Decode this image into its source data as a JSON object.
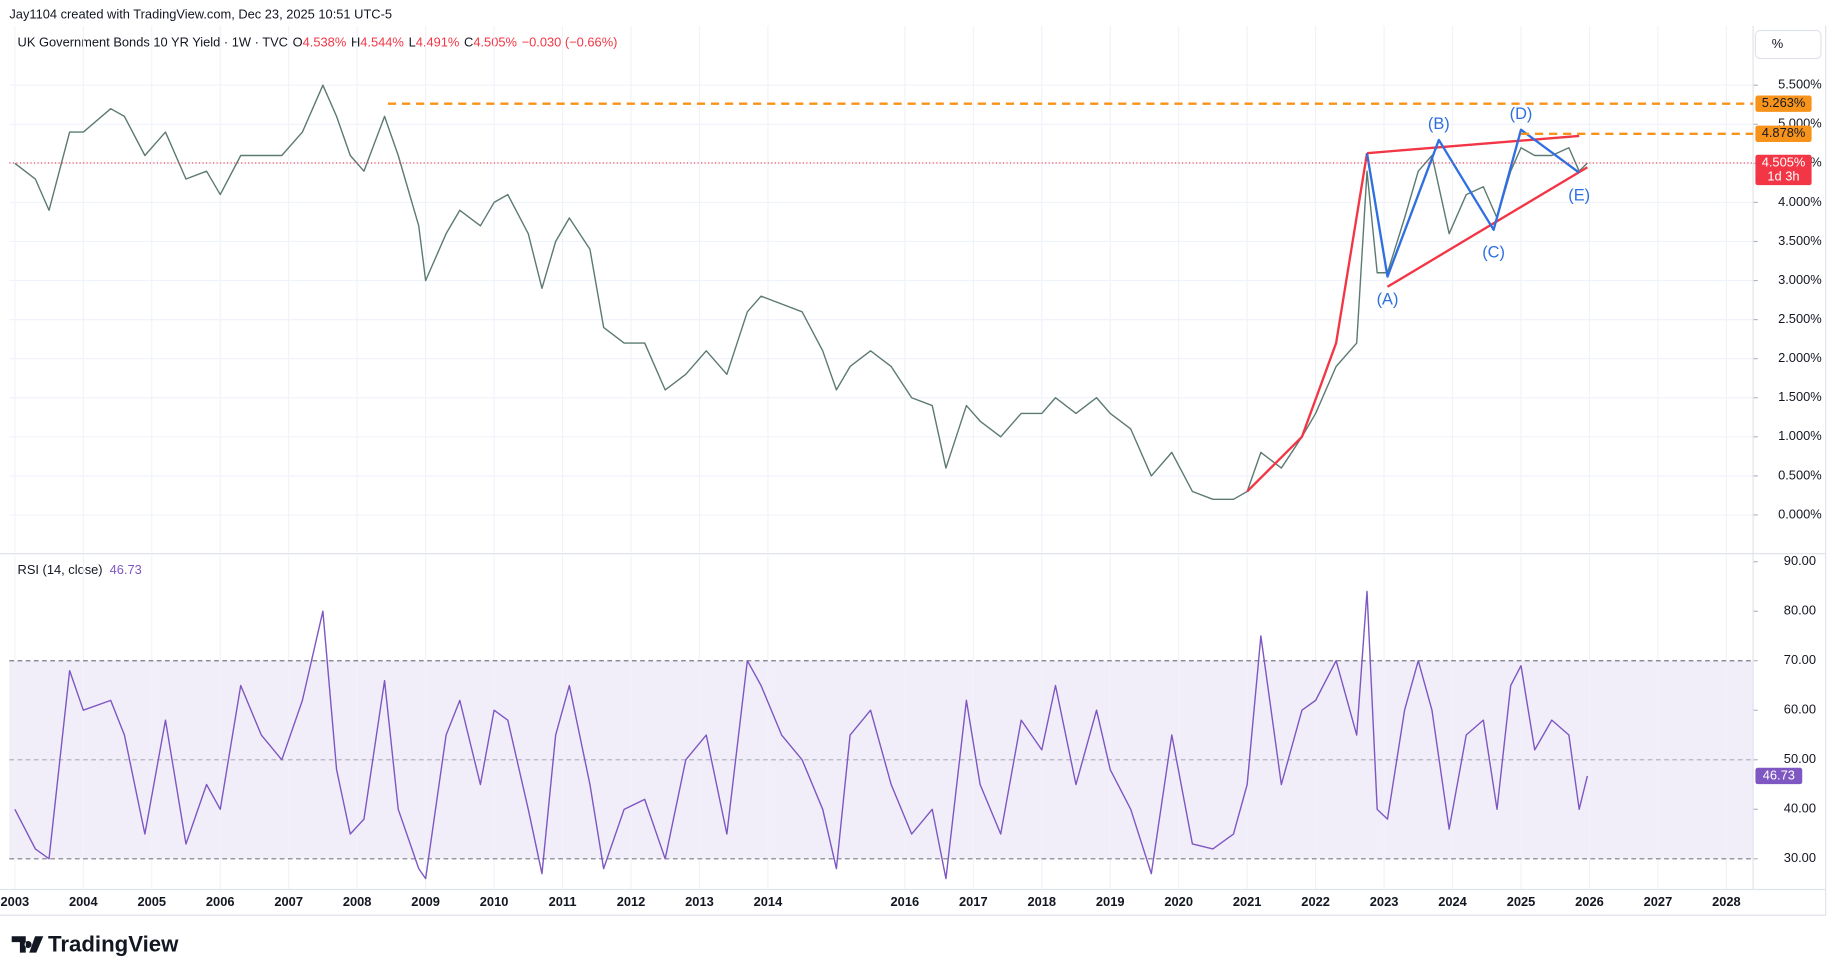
{
  "watermark": "Jay1104 created with TradingView.com, Dec 23, 2025 10:51 UTC-5",
  "logo": "TradingView",
  "unit_button": "%",
  "chart_data": [
    {
      "type": "line",
      "title": "UK Government Bonds 10 YR Yield · 1W · TVC",
      "ohlc": [
        {
          "key": "O",
          "text": "4.538%"
        },
        {
          "key": "H",
          "text": "4.544%"
        },
        {
          "key": "L",
          "text": "4.491%"
        },
        {
          "key": "C",
          "text": "4.505%"
        }
      ],
      "change": "−0.030 (−0.66%)",
      "xlim": [
        2002.92,
        2028.39
      ],
      "xticks": [
        2003,
        2004,
        2005,
        2006,
        2007,
        2008,
        2009,
        2010,
        2011,
        2012,
        2013,
        2014,
        2016,
        2017,
        2018,
        2019,
        2020,
        2021,
        2022,
        2023,
        2024,
        2025,
        2026,
        2027,
        2028
      ],
      "ylim": [
        -0.48,
        6.26
      ],
      "yticks": [
        {
          "value": 0,
          "label": "0.000%"
        },
        {
          "value": 0.5,
          "label": "0.500%"
        },
        {
          "value": 1,
          "label": "1.000%"
        },
        {
          "value": 1.5,
          "label": "1.500%"
        },
        {
          "value": 2,
          "label": "2.000%"
        },
        {
          "value": 2.5,
          "label": "2.500%"
        },
        {
          "value": 3,
          "label": "3.000%"
        },
        {
          "value": 3.5,
          "label": "3.500%"
        },
        {
          "value": 4,
          "label": "4.000%"
        },
        {
          "value": 4.5,
          "label": "4.500%"
        },
        {
          "value": 5,
          "label": "5.000%"
        },
        {
          "value": 5.5,
          "label": "5.500%"
        }
      ],
      "grid": true,
      "x": [
        2003.0,
        2003.3,
        2003.5,
        2003.8,
        2004.0,
        2004.4,
        2004.6,
        2004.9,
        2005.2,
        2005.5,
        2005.8,
        2006.0,
        2006.3,
        2006.6,
        2006.9,
        2007.2,
        2007.5,
        2007.7,
        2007.9,
        2008.1,
        2008.4,
        2008.6,
        2008.9,
        2009.0,
        2009.3,
        2009.5,
        2009.8,
        2010.0,
        2010.2,
        2010.5,
        2010.7,
        2010.9,
        2011.1,
        2011.4,
        2011.6,
        2011.9,
        2012.2,
        2012.5,
        2012.8,
        2013.1,
        2013.4,
        2013.7,
        2013.9,
        2014.2,
        2014.5,
        2014.8,
        2015.0,
        2015.2,
        2015.5,
        2015.8,
        2016.1,
        2016.4,
        2016.6,
        2016.9,
        2017.1,
        2017.4,
        2017.7,
        2018.0,
        2018.2,
        2018.5,
        2018.8,
        2019.0,
        2019.3,
        2019.6,
        2019.9,
        2020.2,
        2020.5,
        2020.8,
        2021.0,
        2021.2,
        2021.5,
        2021.8,
        2022.0,
        2022.3,
        2022.6,
        2022.75,
        2022.9,
        2023.05,
        2023.3,
        2023.5,
        2023.7,
        2023.95,
        2024.2,
        2024.45,
        2024.65,
        2024.85,
        2025.0,
        2025.2,
        2025.45,
        2025.7,
        2025.85,
        2025.97
      ],
      "series": [
        {
          "color": "#5d7a72",
          "values": [
            4.5,
            4.3,
            3.9,
            4.9,
            4.9,
            5.2,
            5.1,
            4.6,
            4.9,
            4.3,
            4.4,
            4.1,
            4.6,
            4.6,
            4.6,
            4.9,
            5.5,
            5.1,
            4.6,
            4.4,
            5.1,
            4.6,
            3.7,
            3.0,
            3.6,
            3.9,
            3.7,
            4.0,
            4.1,
            3.6,
            2.9,
            3.5,
            3.8,
            3.4,
            2.4,
            2.2,
            2.2,
            1.6,
            1.8,
            2.1,
            1.8,
            2.6,
            2.8,
            2.7,
            2.6,
            2.1,
            1.6,
            1.9,
            2.1,
            1.9,
            1.5,
            1.4,
            0.6,
            1.4,
            1.2,
            1.0,
            1.3,
            1.3,
            1.5,
            1.3,
            1.5,
            1.3,
            1.1,
            0.5,
            0.8,
            0.3,
            0.2,
            0.2,
            0.3,
            0.8,
            0.6,
            1.0,
            1.3,
            1.9,
            2.2,
            4.4,
            3.1,
            3.1,
            3.8,
            4.4,
            4.6,
            3.6,
            4.1,
            4.2,
            3.8,
            4.4,
            4.7,
            4.6,
            4.6,
            4.7,
            4.4,
            4.505
          ]
        }
      ],
      "levels": [
        {
          "value": 5.263,
          "label": "5.263%",
          "start": 2008.45,
          "color": "#f7931a",
          "text_color": "#131722",
          "style": "dashed"
        },
        {
          "value": 4.878,
          "label": "4.878%",
          "start": 2025.0,
          "color": "#f7931a",
          "text_color": "#131722",
          "style": "dashed"
        },
        {
          "value": 4.505,
          "label": "4.505%",
          "sub": "1d 3h",
          "start": 2002.92,
          "color": "#f23645",
          "text_color": "#ffffff",
          "style": "dotted"
        }
      ],
      "wave_path": {
        "color": "#2f6fe0",
        "x": [
          2022.75,
          2023.05,
          2023.8,
          2024.6,
          2025.0,
          2025.85
        ],
        "y": [
          4.63,
          3.05,
          4.8,
          3.65,
          4.93,
          4.38
        ],
        "labels": [
          null,
          "(A)",
          "(B)",
          "(C)",
          "(D)",
          "(E)"
        ]
      },
      "trendlines": [
        {
          "color": "#f23645",
          "x": [
            2022.75,
            2025.85
          ],
          "y": [
            4.63,
            4.85
          ]
        },
        {
          "color": "#f23645",
          "x": [
            2023.05,
            2025.97
          ],
          "y": [
            2.92,
            4.45
          ]
        }
      ],
      "curve": {
        "color": "#f23645",
        "x": [
          2021.0,
          2021.8,
          2022.3,
          2022.75
        ],
        "y": [
          0.3,
          1.0,
          2.2,
          4.63
        ]
      }
    },
    {
      "type": "line",
      "title": "RSI (14, close)",
      "last_value": 46.73,
      "color": "#7e57c2",
      "xlim": [
        2002.92,
        2028.39
      ],
      "ylim": [
        23.8,
        91.4
      ],
      "yticks": [
        {
          "value": 30,
          "label": "30.00"
        },
        {
          "value": 40,
          "label": "40.00"
        },
        {
          "value": 50,
          "label": "50.00"
        },
        {
          "value": 60,
          "label": "60.00"
        },
        {
          "value": 70,
          "label": "70.00"
        },
        {
          "value": 80,
          "label": "80.00"
        },
        {
          "value": 90,
          "label": "90.00"
        }
      ],
      "band": [
        30,
        70
      ],
      "midline": 50,
      "x": [
        2003.0,
        2003.3,
        2003.5,
        2003.8,
        2004.0,
        2004.4,
        2004.6,
        2004.9,
        2005.2,
        2005.5,
        2005.8,
        2006.0,
        2006.3,
        2006.6,
        2006.9,
        2007.2,
        2007.5,
        2007.7,
        2007.9,
        2008.1,
        2008.4,
        2008.6,
        2008.9,
        2009.0,
        2009.3,
        2009.5,
        2009.8,
        2010.0,
        2010.2,
        2010.5,
        2010.7,
        2010.9,
        2011.1,
        2011.4,
        2011.6,
        2011.9,
        2012.2,
        2012.5,
        2012.8,
        2013.1,
        2013.4,
        2013.7,
        2013.9,
        2014.2,
        2014.5,
        2014.8,
        2015.0,
        2015.2,
        2015.5,
        2015.8,
        2016.1,
        2016.4,
        2016.6,
        2016.9,
        2017.1,
        2017.4,
        2017.7,
        2018.0,
        2018.2,
        2018.5,
        2018.8,
        2019.0,
        2019.3,
        2019.6,
        2019.9,
        2020.2,
        2020.5,
        2020.8,
        2021.0,
        2021.2,
        2021.5,
        2021.8,
        2022.0,
        2022.3,
        2022.6,
        2022.75,
        2022.9,
        2023.05,
        2023.3,
        2023.5,
        2023.7,
        2023.95,
        2024.2,
        2024.45,
        2024.65,
        2024.85,
        2025.0,
        2025.2,
        2025.45,
        2025.7,
        2025.85,
        2025.97
      ],
      "values": [
        40,
        32,
        30,
        68,
        60,
        62,
        55,
        35,
        58,
        33,
        45,
        40,
        65,
        55,
        50,
        62,
        80,
        48,
        35,
        38,
        66,
        40,
        28,
        26,
        55,
        62,
        45,
        60,
        58,
        40,
        27,
        55,
        65,
        45,
        28,
        40,
        42,
        30,
        50,
        55,
        35,
        70,
        65,
        55,
        50,
        40,
        28,
        55,
        60,
        45,
        35,
        40,
        26,
        62,
        45,
        35,
        58,
        52,
        65,
        45,
        60,
        48,
        40,
        27,
        55,
        33,
        32,
        35,
        45,
        75,
        45,
        60,
        62,
        70,
        55,
        84,
        40,
        38,
        60,
        70,
        60,
        36,
        55,
        58,
        40,
        65,
        69,
        52,
        58,
        55,
        40,
        46.73
      ]
    }
  ]
}
